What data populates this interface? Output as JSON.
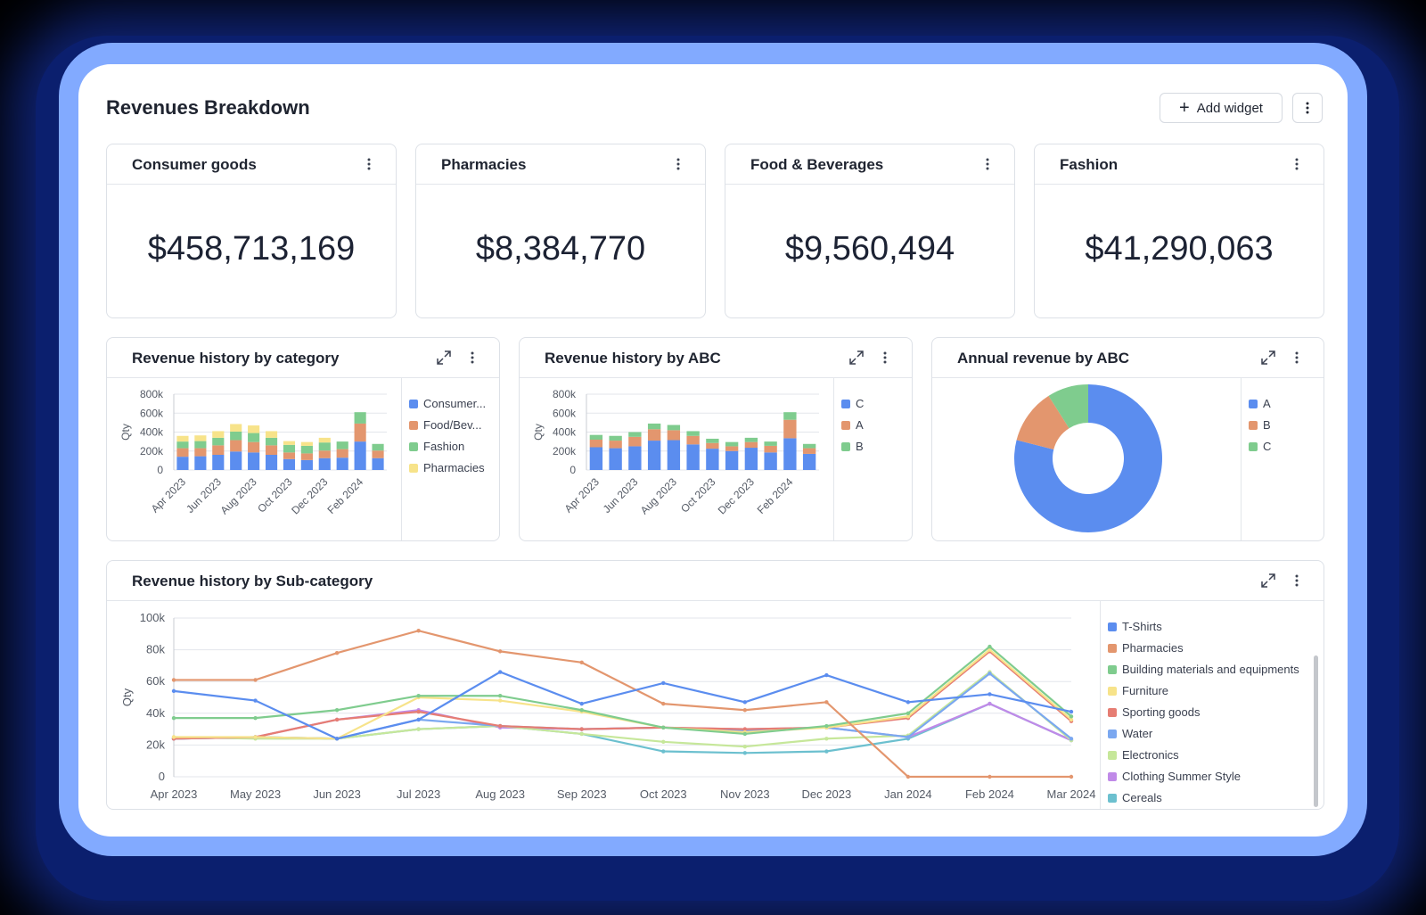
{
  "page": {
    "title": "Revenues Breakdown",
    "add_widget_label": "Add widget"
  },
  "kpis": [
    {
      "title": "Consumer goods",
      "value": "$458,713,169"
    },
    {
      "title": "Pharmacies",
      "value": "$8,384,770"
    },
    {
      "title": "Food & Beverages",
      "value": "$9,560,494"
    },
    {
      "title": "Fashion",
      "value": "$41,290,063"
    }
  ],
  "colors": {
    "blue": "#5b8def",
    "orange": "#e3966e",
    "green": "#7fcc8e",
    "yellow": "#f7e38a",
    "red": "#e67d73",
    "lightblue": "#7ba8f0",
    "lightgreen": "#c6e79a",
    "purple": "#c08ae8",
    "teal": "#6cc0cf"
  },
  "chart_category": {
    "title": "Revenue history by category",
    "legend": [
      "Consumer...",
      "Food/Bev...",
      "Fashion",
      "Pharmacies"
    ],
    "chart_data": {
      "type": "bar",
      "stacked": true,
      "ylabel": "Qty",
      "ylim": [
        0,
        800000
      ],
      "yticks": [
        "800k",
        "600k",
        "400k",
        "200k",
        "0"
      ],
      "xtick_labels": [
        "Apr 2023",
        "Jun 2023",
        "Aug 2023",
        "Oct 2023",
        "Dec 2023",
        "Feb 2024"
      ],
      "categories": [
        "Apr 2023",
        "May 2023",
        "Jun 2023",
        "Jul 2023",
        "Aug 2023",
        "Sep 2023",
        "Oct 2023",
        "Nov 2023",
        "Dec 2023",
        "Jan 2024",
        "Feb 2024",
        "Mar 2024"
      ],
      "series": [
        {
          "name": "Consumer...",
          "color": "#5b8def",
          "values": [
            140000,
            145000,
            160000,
            195000,
            185000,
            160000,
            115000,
            105000,
            125000,
            130000,
            300000,
            125000
          ]
        },
        {
          "name": "Food/Bev...",
          "color": "#e3966e",
          "values": [
            90000,
            85000,
            100000,
            120000,
            110000,
            100000,
            70000,
            70000,
            80000,
            90000,
            190000,
            80000
          ]
        },
        {
          "name": "Fashion",
          "color": "#7fcc8e",
          "values": [
            70000,
            75000,
            80000,
            90000,
            95000,
            80000,
            80000,
            80000,
            85000,
            80000,
            120000,
            70000
          ]
        },
        {
          "name": "Pharmacies",
          "color": "#f7e38a",
          "values": [
            60000,
            60000,
            70000,
            80000,
            80000,
            70000,
            40000,
            40000,
            50000,
            0,
            0,
            0
          ]
        }
      ]
    }
  },
  "chart_abc": {
    "title": "Revenue history by ABC",
    "legend": [
      "C",
      "A",
      "B"
    ],
    "chart_data": {
      "type": "bar",
      "stacked": true,
      "ylabel": "Qty",
      "ylim": [
        0,
        800000
      ],
      "yticks": [
        "800k",
        "600k",
        "400k",
        "200k",
        "0"
      ],
      "xtick_labels": [
        "Apr 2023",
        "Jun 2023",
        "Aug 2023",
        "Oct 2023",
        "Dec 2023",
        "Feb 2024"
      ],
      "categories": [
        "Apr 2023",
        "May 2023",
        "Jun 2023",
        "Jul 2023",
        "Aug 2023",
        "Sep 2023",
        "Oct 2023",
        "Nov 2023",
        "Dec 2023",
        "Jan 2024",
        "Feb 2024",
        "Mar 2024"
      ],
      "series": [
        {
          "name": "C",
          "color": "#5b8def",
          "values": [
            240000,
            230000,
            250000,
            310000,
            315000,
            270000,
            225000,
            200000,
            235000,
            185000,
            335000,
            170000
          ]
        },
        {
          "name": "A",
          "color": "#e3966e",
          "values": [
            80000,
            80000,
            100000,
            120000,
            105000,
            90000,
            60000,
            50000,
            60000,
            70000,
            195000,
            60000
          ]
        },
        {
          "name": "B",
          "color": "#7fcc8e",
          "values": [
            50000,
            50000,
            50000,
            60000,
            55000,
            50000,
            45000,
            45000,
            45000,
            45000,
            80000,
            45000
          ]
        }
      ]
    }
  },
  "chart_annual": {
    "title": "Annual revenue by ABC",
    "legend": [
      "A",
      "B",
      "C"
    ],
    "chart_data": {
      "type": "pie",
      "donut": true,
      "slices": [
        {
          "name": "A",
          "color": "#5b8def",
          "value": 79
        },
        {
          "name": "B",
          "color": "#e3966e",
          "value": 12
        },
        {
          "name": "C",
          "color": "#7fcc8e",
          "value": 9
        }
      ]
    }
  },
  "chart_sub": {
    "title": "Revenue history by Sub-category",
    "legend": [
      "T-Shirts",
      "Pharmacies",
      "Building materials and equipments",
      "Furniture",
      "Sporting goods",
      "Water",
      "Electronics",
      "Clothing Summer Style",
      "Cereals"
    ],
    "chart_data": {
      "type": "line",
      "ylabel": "Qty",
      "ylim": [
        0,
        100000
      ],
      "yticks": [
        "100k",
        "80k",
        "60k",
        "40k",
        "20k",
        "0"
      ],
      "x": [
        "Apr 2023",
        "May 2023",
        "Jun 2023",
        "Jul 2023",
        "Aug 2023",
        "Sep 2023",
        "Oct 2023",
        "Nov 2023",
        "Dec 2023",
        "Jan 2024",
        "Feb 2024",
        "Mar 2024"
      ],
      "series": [
        {
          "name": "T-Shirts",
          "color": "#5b8def",
          "values": [
            54000,
            48000,
            24000,
            36000,
            66000,
            46000,
            59000,
            47000,
            64000,
            47000,
            52000,
            41000
          ]
        },
        {
          "name": "Pharmacies",
          "color": "#e3966e",
          "values": [
            61000,
            61000,
            78000,
            92000,
            79000,
            72000,
            46000,
            42000,
            47000,
            0,
            0,
            0
          ]
        },
        {
          "name": "Building materials and equipments",
          "color": "#7fcc8e",
          "values": [
            37000,
            37000,
            42000,
            51000,
            51000,
            42000,
            31000,
            27000,
            32000,
            40000,
            82000,
            38000
          ]
        },
        {
          "name": "Furniture",
          "color": "#f7e38a",
          "values": [
            25000,
            25000,
            24000,
            50000,
            48000,
            41000,
            31000,
            28000,
            31000,
            38000,
            80000,
            36000
          ]
        },
        {
          "name": "Sporting goods",
          "color": "#e67d73",
          "values": [
            24000,
            25000,
            36000,
            41000,
            32000,
            30000,
            31000,
            30000,
            31000,
            37000,
            79000,
            35000
          ]
        },
        {
          "name": "Water",
          "color": "#7ba8f0",
          "values": [
            24000,
            25000,
            24000,
            36000,
            32000,
            30000,
            31000,
            29000,
            31000,
            25000,
            65000,
            24000
          ]
        },
        {
          "name": "Electronics",
          "color": "#c6e79a",
          "values": [
            25000,
            24000,
            24000,
            30000,
            32000,
            27000,
            22000,
            19000,
            24000,
            26000,
            66000,
            23000
          ]
        },
        {
          "name": "Clothing Summer Style",
          "color": "#c08ae8",
          "values": [
            24000,
            25000,
            36000,
            42000,
            31000,
            30000,
            31000,
            30000,
            31000,
            25000,
            46000,
            23000
          ]
        },
        {
          "name": "Cereals",
          "color": "#6cc0cf",
          "values": [
            24000,
            25000,
            24000,
            30000,
            32000,
            27000,
            16000,
            15000,
            16000,
            24000,
            46000,
            23000
          ]
        }
      ]
    }
  }
}
